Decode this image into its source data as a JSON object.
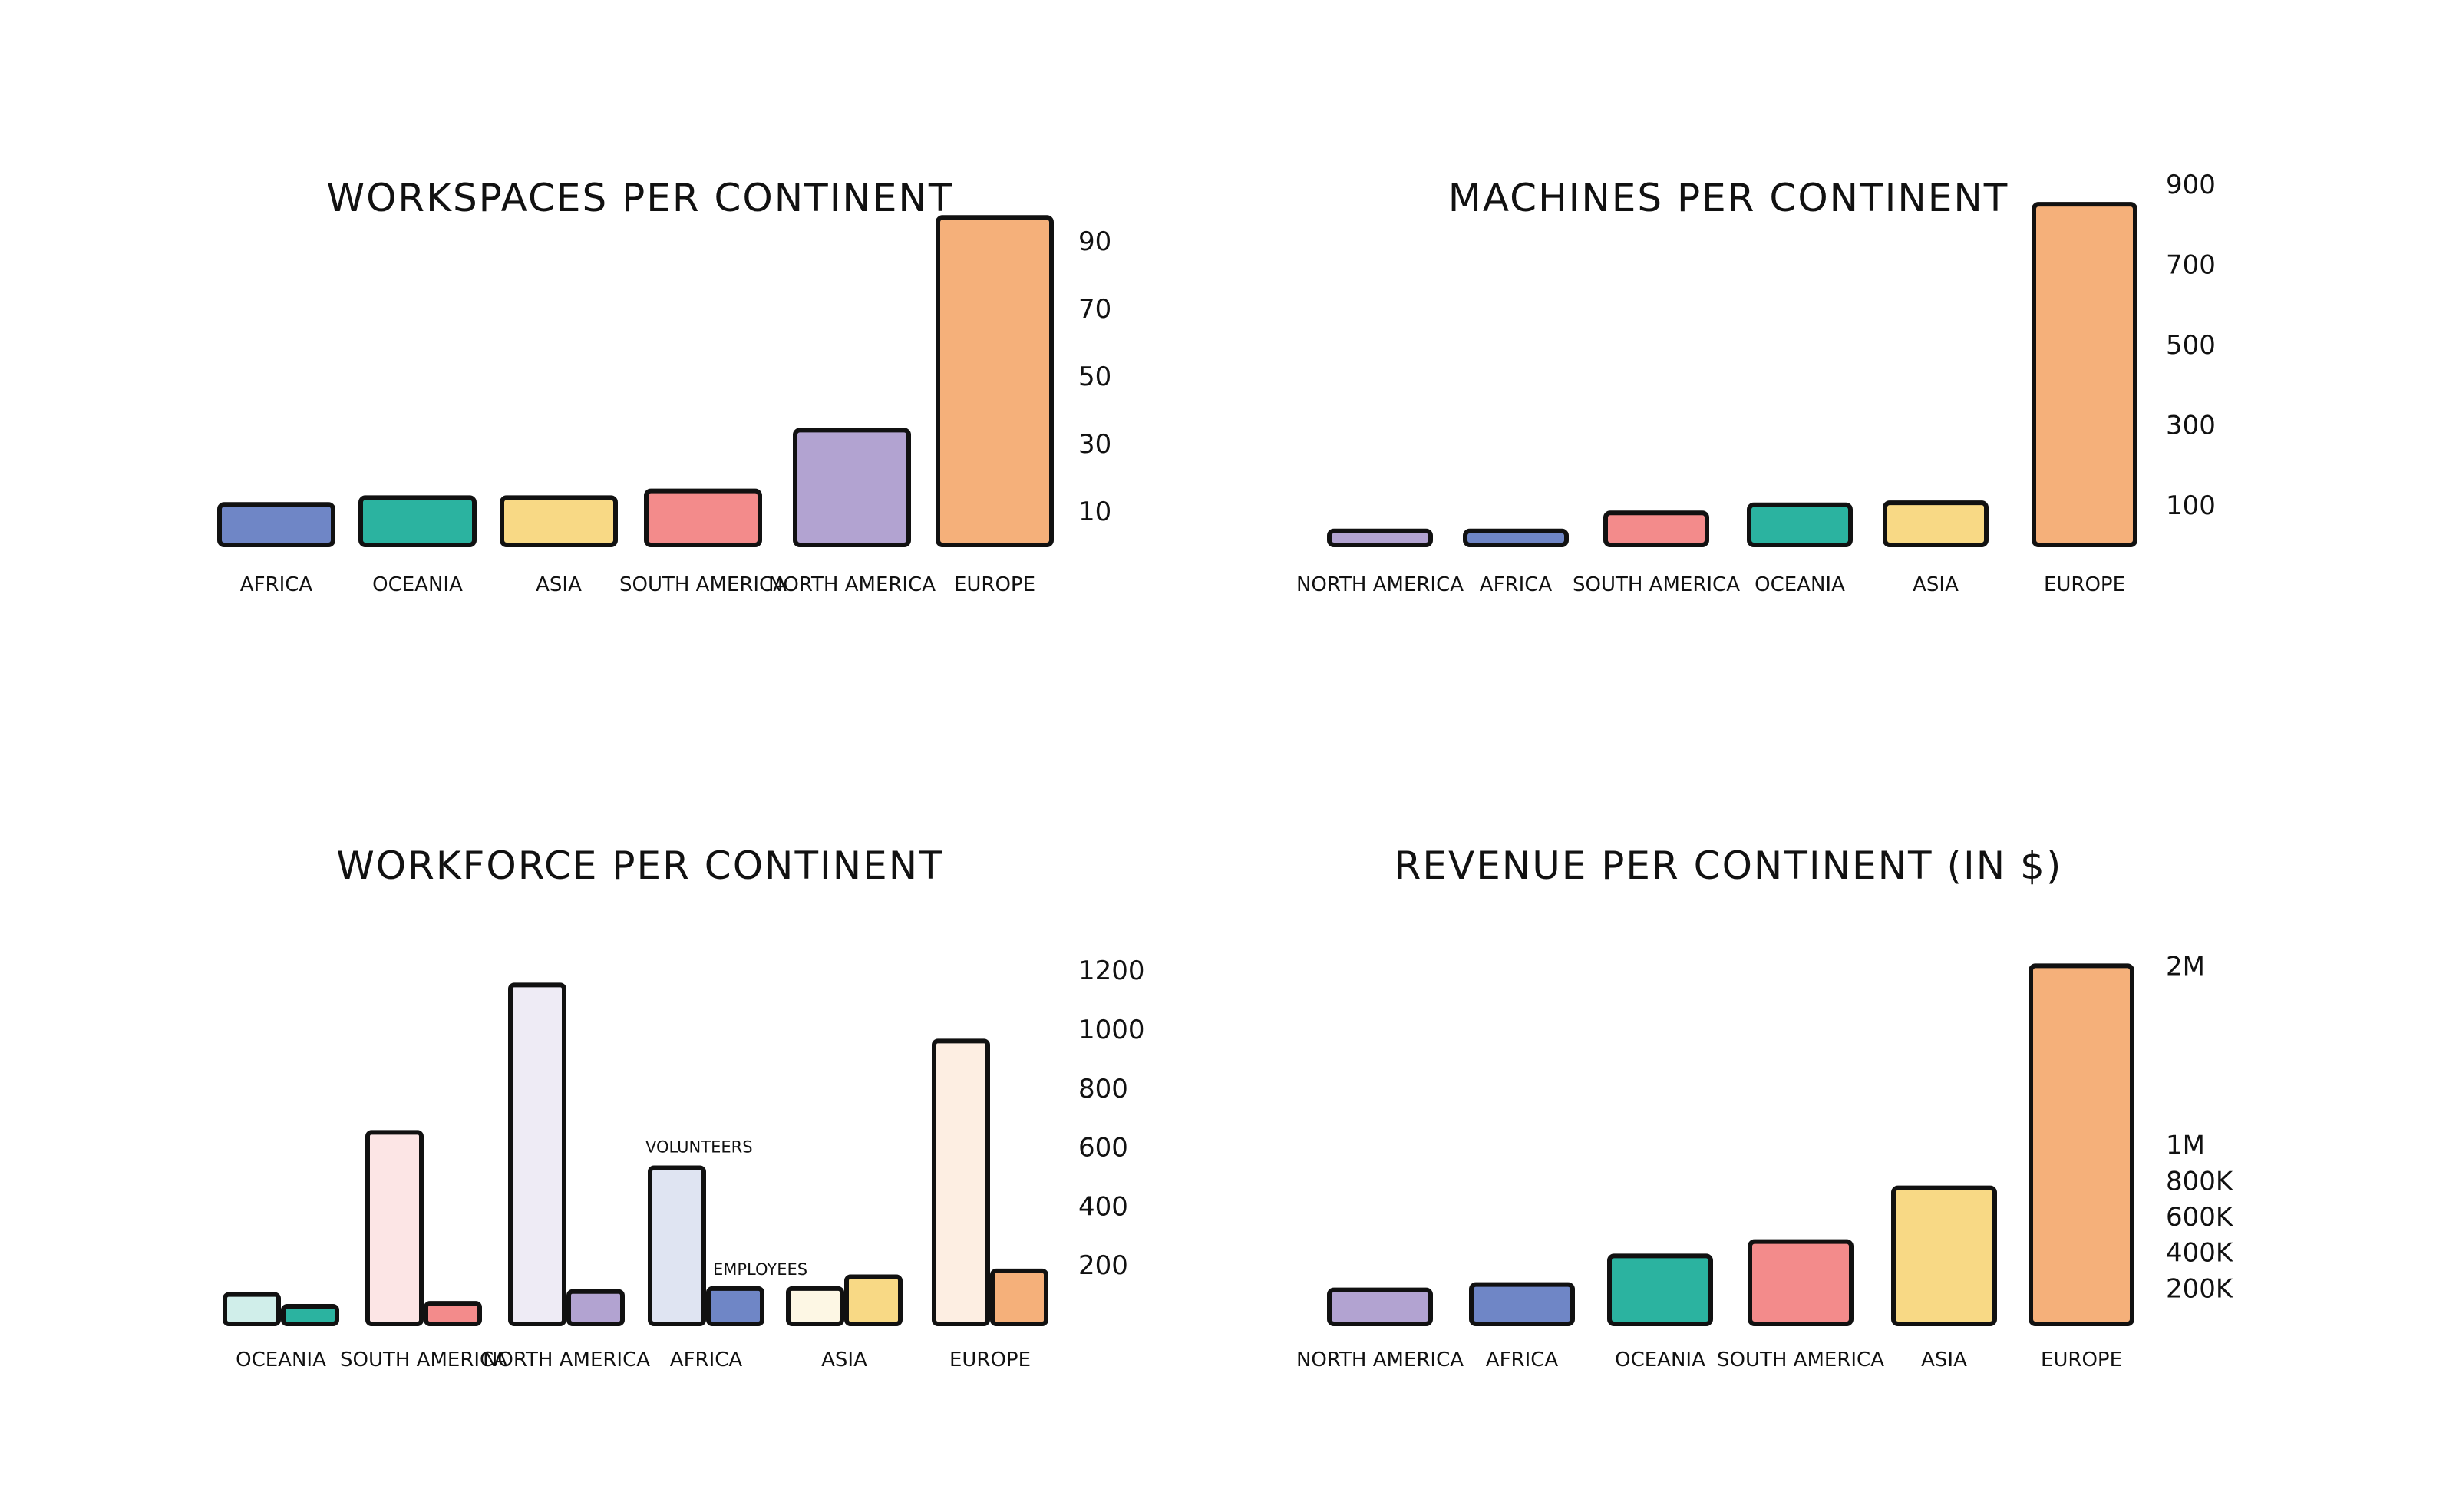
{
  "colors": {
    "Africa": "#6f86c6",
    "Oceania": "#2bb3a0",
    "Asia": "#f8d985",
    "South America": "#f38b8b",
    "North America": "#b2a3d1",
    "Europe": "#f5b07a",
    "stroke": "#111111"
  },
  "chart_data": [
    {
      "type": "bar",
      "title": "WORKSPACES PER CONTINENT",
      "categories": [
        "AFRICA",
        "OCEANIA",
        "ASIA",
        "SOUTH AMERICA",
        "NORTH AMERICA",
        "EUROPE"
      ],
      "colorKeys": [
        "Africa",
        "Oceania",
        "Asia",
        "South America",
        "North America",
        "Europe"
      ],
      "values": [
        12,
        14,
        14,
        16,
        34,
        97
      ],
      "ylim": [
        0,
        100
      ],
      "yticks": [
        10,
        30,
        50,
        70,
        90
      ],
      "ytick_labels": [
        "10",
        "30",
        "50",
        "70",
        "90"
      ]
    },
    {
      "type": "bar",
      "title": "MACHINES PER CONTINENT",
      "categories": [
        "NORTH AMERICA",
        "AFRICA",
        "SOUTH AMERICA",
        "OCEANIA",
        "ASIA",
        "EUROPE"
      ],
      "colorKeys": [
        "North America",
        "Africa",
        "South America",
        "Oceania",
        "Asia",
        "Europe"
      ],
      "values": [
        35,
        35,
        80,
        100,
        105,
        850
      ],
      "ylim": [
        0,
        900
      ],
      "yticks": [
        100,
        300,
        500,
        700,
        900
      ],
      "ytick_labels": [
        "100",
        "300",
        "500",
        "700",
        "900"
      ]
    },
    {
      "type": "bar",
      "title": "WORKFORCE PER CONTINENT",
      "categories": [
        "OCEANIA",
        "SOUTH AMERICA",
        "NORTH AMERICA",
        "AFRICA",
        "ASIA",
        "EUROPE"
      ],
      "colorKeys": [
        "Oceania",
        "South America",
        "North America",
        "Africa",
        "Asia",
        "Europe"
      ],
      "series": [
        {
          "name": "VOLUNTEERS",
          "values": [
            100,
            650,
            1150,
            530,
            120,
            960
          ]
        },
        {
          "name": "EMPLOYEES",
          "values": [
            60,
            70,
            110,
            120,
            160,
            180
          ]
        }
      ],
      "ylim": [
        0,
        1250
      ],
      "yticks": [
        200,
        400,
        600,
        800,
        1000,
        1200
      ],
      "ytick_labels": [
        "200",
        "400",
        "600",
        "800",
        "1000",
        "1200"
      ]
    },
    {
      "type": "bar",
      "title": "REVENUE PER CONTINENT (IN $)",
      "categories": [
        "NORTH AMERICA",
        "AFRICA",
        "OCEANIA",
        "SOUTH AMERICA",
        "ASIA",
        "EUROPE"
      ],
      "colorKeys": [
        "North America",
        "Africa",
        "Oceania",
        "South America",
        "Asia",
        "Europe"
      ],
      "values": [
        190000,
        220000,
        380000,
        460000,
        760000,
        2000000
      ],
      "ylim": [
        0,
        2100000
      ],
      "yticks": [
        200000,
        400000,
        600000,
        800000,
        1000000,
        2000000
      ],
      "ytick_labels": [
        "200K",
        "400K",
        "600K",
        "800K",
        "1M",
        "2M"
      ]
    }
  ]
}
